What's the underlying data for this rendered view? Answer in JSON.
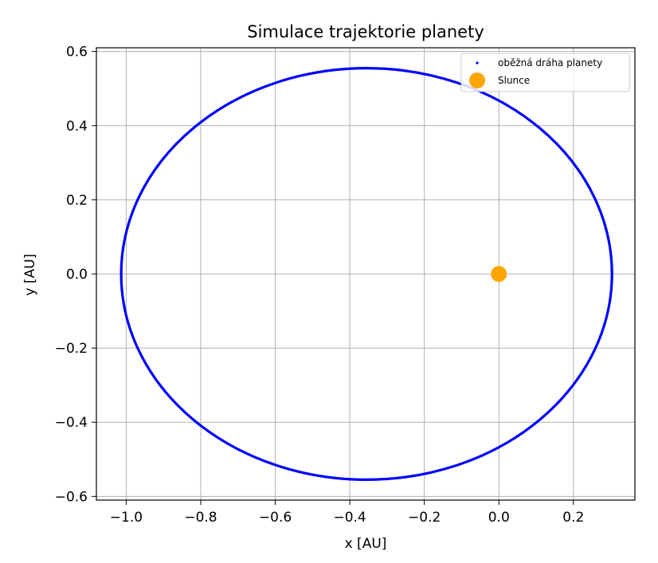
{
  "chart_data": {
    "type": "scatter",
    "title": "Simulace trajektorie planety",
    "xlabel": "x [AU]",
    "ylabel": "y [AU]",
    "xlim": [
      -1.08,
      0.365
    ],
    "ylim": [
      -0.61,
      0.61
    ],
    "xticks": [
      -1.0,
      -0.8,
      -0.6,
      -0.4,
      -0.2,
      0.0,
      0.2
    ],
    "xtick_labels": [
      "−1.0",
      "−0.8",
      "−0.6",
      "−0.4",
      "−0.2",
      "0.0",
      "0.2"
    ],
    "yticks": [
      -0.6,
      -0.4,
      -0.2,
      0.0,
      0.2,
      0.4,
      0.6
    ],
    "ytick_labels": [
      "−0.6",
      "−0.4",
      "−0.2",
      "0.0",
      "0.2",
      "0.4",
      "0.6"
    ],
    "grid": true,
    "legend_position": "top-right",
    "series": [
      {
        "name": "oběžná dráha planety",
        "kind": "orbit",
        "color": "#0000ff",
        "center": [
          -0.355,
          0.0
        ],
        "semi_major_axis": 0.6585,
        "semi_minor_axis": 0.555,
        "x_range": [
          -1.014,
          0.303
        ],
        "y_range": [
          -0.555,
          0.555
        ]
      },
      {
        "name": "Slunce",
        "kind": "point",
        "color": "#ffa500",
        "x": [
          0.0
        ],
        "y": [
          0.0
        ]
      }
    ]
  }
}
